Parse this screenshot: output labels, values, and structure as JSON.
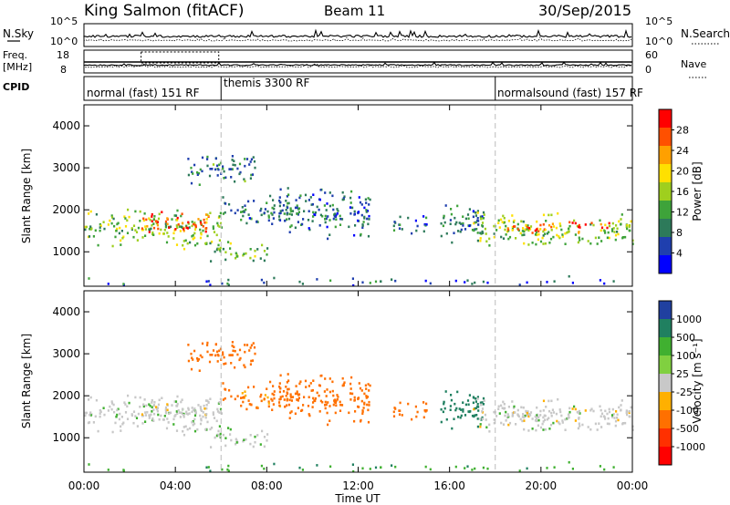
{
  "header": {
    "station": "King Salmon (fitACF)",
    "beam": "Beam 11",
    "date": "30/Sep/2015"
  },
  "strips": {
    "nsky_label": "N.Sky",
    "nsky_ticks": [
      "10^5",
      "10^0"
    ],
    "nsearch_label": "N.Search",
    "nsearch_ticks": [
      "10^5",
      "10^0"
    ],
    "freq_label_1": "Freq.",
    "freq_label_2": "[MHz]",
    "freq_ticks": [
      "18",
      "8"
    ],
    "nave_label": "Nave",
    "nave_ticks": [
      "60",
      "0"
    ],
    "cpid_label": "CPID",
    "cpid_modes": [
      "normal (fast) 151 RF",
      "themis 3300 RF",
      "normalsound (fast) 157 RF"
    ]
  },
  "time_axis": {
    "label": "Time UT",
    "ticks": [
      "00:00",
      "04:00",
      "08:00",
      "12:00",
      "16:00",
      "20:00",
      "00:00"
    ],
    "mode_change_hours": [
      6,
      18
    ]
  },
  "power_panel": {
    "ylabel": "Slant Range [km]",
    "yticks": [
      "4000",
      "3000",
      "2000",
      "1000"
    ],
    "colorbar_label": "Power [dB]",
    "colorbar_ticks": [
      "28",
      "24",
      "20",
      "16",
      "12",
      "8",
      "4"
    ],
    "colorbar_colors": [
      "#0000ff",
      "#1f3fae",
      "#2d7a5a",
      "#3ea33a",
      "#9fcf1e",
      "#ffe000",
      "#ffa000",
      "#ff5000",
      "#ff0000"
    ]
  },
  "velocity_panel": {
    "ylabel": "Slant Range [km]",
    "yticks": [
      "4000",
      "3000",
      "2000",
      "1000"
    ],
    "colorbar_label": "Velocity [m s⁻¹]",
    "colorbar_ticks": [
      "1000",
      "500",
      "100",
      "25",
      "-25",
      "-100",
      "-500",
      "-1000"
    ],
    "colorbar_colors": [
      "#2040a0",
      "#208060",
      "#40b030",
      "#80d040",
      "#c8c8c8",
      "#ffb000",
      "#ff7000",
      "#ff3000",
      "#ff0000"
    ]
  },
  "chart_data": {
    "type": "heatmap",
    "x": {
      "label": "Time UT",
      "range_hours": [
        0,
        24
      ]
    },
    "y": {
      "label": "Slant Range [km]",
      "range_km": [
        180,
        4500
      ]
    },
    "power_db_range": [
      0,
      30
    ],
    "velocity_ms_range": [
      -1000,
      1000
    ],
    "echo_regions": [
      {
        "t0": 0.0,
        "t1": 6.0,
        "r0": 1050,
        "r1": 2100,
        "power": 14,
        "velocity": 5
      },
      {
        "t0": 2.5,
        "t1": 5.5,
        "r0": 1400,
        "r1": 2000,
        "power": 25,
        "velocity": 0
      },
      {
        "t0": 4.5,
        "t1": 7.5,
        "r0": 2600,
        "r1": 3400,
        "power": 9,
        "velocity": -300
      },
      {
        "t0": 5.5,
        "t1": 8.0,
        "r0": 750,
        "r1": 1300,
        "power": 12,
        "velocity": 10
      },
      {
        "t0": 6.0,
        "t1": 9.5,
        "r0": 1600,
        "r1": 2400,
        "power": 8,
        "velocity": -120
      },
      {
        "t0": 8.5,
        "t1": 12.5,
        "r0": 1300,
        "r1": 2600,
        "power": 7,
        "velocity": -200
      },
      {
        "t0": 13.5,
        "t1": 15.0,
        "r0": 1400,
        "r1": 1900,
        "power": 7,
        "velocity": -150
      },
      {
        "t0": 15.5,
        "t1": 17.5,
        "r0": 1200,
        "r1": 2300,
        "power": 8,
        "velocity": 150
      },
      {
        "t0": 17.0,
        "t1": 24.0,
        "r0": 1100,
        "r1": 2000,
        "power": 14,
        "velocity": 0
      },
      {
        "t0": 18.5,
        "t1": 23.0,
        "r0": 1450,
        "r1": 1750,
        "power": 24,
        "velocity": 0
      },
      {
        "t0": 0.0,
        "t1": 24.0,
        "r0": 200,
        "r1": 450,
        "power": 6,
        "velocity": 80
      }
    ]
  }
}
